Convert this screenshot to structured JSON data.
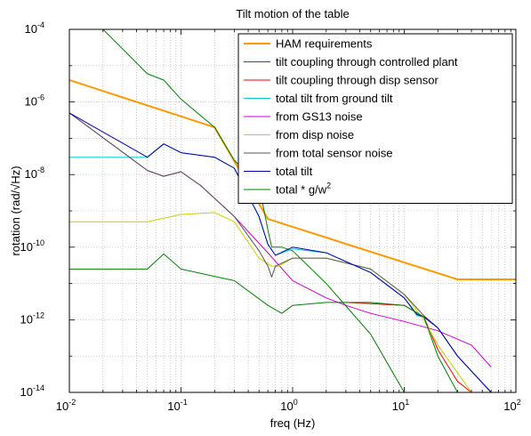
{
  "chart_data": {
    "type": "line",
    "title": "Tilt motion of the table",
    "xlabel": "freq (Hz)",
    "ylabel": "rotation (rad/√Hz)",
    "xscale": "log",
    "yscale": "log",
    "xlim": [
      0.01,
      100
    ],
    "ylim": [
      1e-14,
      0.0001
    ],
    "grid": true,
    "legend_position": "top-right",
    "x_ticks": [
      {
        "value": 0.01,
        "base": "10",
        "exp": "-2"
      },
      {
        "value": 0.1,
        "base": "10",
        "exp": "-1"
      },
      {
        "value": 1,
        "base": "10",
        "exp": "0"
      },
      {
        "value": 10,
        "base": "10",
        "exp": "1"
      },
      {
        "value": 100,
        "base": "10",
        "exp": "2"
      }
    ],
    "y_ticks": [
      {
        "value": 1e-14,
        "base": "10",
        "exp": "-14"
      },
      {
        "value": 1e-12,
        "base": "10",
        "exp": "-12"
      },
      {
        "value": 1e-10,
        "base": "10",
        "exp": "-10"
      },
      {
        "value": 1e-08,
        "base": "10",
        "exp": "-8"
      },
      {
        "value": 1e-06,
        "base": "10",
        "exp": "-6"
      },
      {
        "value": 0.0001,
        "base": "10",
        "exp": "-4"
      }
    ],
    "series": [
      {
        "name": "HAM requirements",
        "color": "#ff9900",
        "width": 2,
        "x": [
          0.01,
          0.2,
          0.6,
          30,
          100
        ],
        "y": [
          4e-06,
          2e-07,
          6e-10,
          1.3e-11,
          1.3e-11
        ]
      },
      {
        "name": "tilt coupling through controlled plant",
        "color": "#008000",
        "width": 1,
        "x": [
          0.02,
          0.05,
          0.07,
          0.1,
          0.2,
          0.3,
          0.5,
          0.6,
          0.65,
          0.8,
          1,
          2,
          5,
          10
        ],
        "y": [
          0.0001,
          6e-06,
          4e-06,
          1.2e-06,
          2e-07,
          2.5e-08,
          5e-09,
          3e-10,
          1e-10,
          1e-10,
          8e-11,
          1e-11,
          4e-13,
          1e-14
        ]
      },
      {
        "name": "tilt coupling through disp sensor",
        "color": "#ff0000",
        "width": 1,
        "x": [
          3,
          10,
          15,
          20,
          30,
          40
        ],
        "y": [
          3e-12,
          2.5e-12,
          1.2e-12,
          1.5e-13,
          2e-14,
          1e-14
        ]
      },
      {
        "name": "total tilt from ground tilt",
        "color": "#00cccc",
        "width": 1,
        "x": [
          0.01,
          0.05,
          0.07,
          0.1,
          0.2,
          0.3,
          0.5,
          0.6,
          0.7,
          1,
          2,
          5,
          10,
          13,
          15,
          20,
          30,
          60
        ],
        "y": [
          3e-08,
          3e-08,
          7e-08,
          4e-08,
          3e-08,
          1.5e-08,
          7e-10,
          1.2e-10,
          6e-11,
          9e-11,
          7e-11,
          2e-11,
          4e-12,
          1.3e-12,
          1.2e-12,
          6e-13,
          1e-13,
          1e-14
        ]
      },
      {
        "name": "from GS13 noise",
        "color": "#cc00cc",
        "width": 1,
        "x": [
          0.01,
          0.05,
          0.07,
          0.1,
          0.15,
          0.3,
          0.6,
          1,
          2,
          3,
          5,
          10,
          20,
          40,
          60
        ],
        "y": [
          5e-07,
          1.3e-08,
          9e-09,
          1.2e-08,
          5e-09,
          7e-10,
          7e-11,
          1.2e-11,
          4e-12,
          2.5e-12,
          1.5e-12,
          9e-13,
          5e-13,
          2e-13,
          5e-14
        ]
      },
      {
        "name": "from disp noise",
        "color": "#cccc00",
        "width": 1,
        "x": [
          0.01,
          0.05,
          0.1,
          0.2,
          0.3,
          0.5,
          0.65,
          0.75,
          1,
          2,
          5,
          10,
          15,
          20,
          40
        ],
        "y": [
          5e-10,
          5e-10,
          8e-10,
          9e-10,
          5e-10,
          5e-11,
          3e-11,
          3e-11,
          5e-11,
          5e-11,
          2.5e-11,
          5e-12,
          1e-12,
          2e-13,
          1e-14
        ]
      },
      {
        "name": "from total sensor noise",
        "color": "#555555",
        "width": 1,
        "x": [
          0.01,
          0.05,
          0.07,
          0.1,
          0.15,
          0.3,
          0.5,
          0.6,
          0.65,
          0.7,
          1,
          2,
          5,
          10,
          15,
          20,
          30,
          60
        ],
        "y": [
          5e-07,
          1.3e-08,
          9e-09,
          1.2e-08,
          5e-09,
          7e-10,
          8e-11,
          3e-11,
          1.5e-11,
          3e-11,
          5e-11,
          5e-11,
          2.5e-11,
          5e-12,
          1.3e-12,
          6e-13,
          1e-13,
          1e-14
        ]
      },
      {
        "name": "total tilt",
        "color": "#0000aa",
        "width": 1,
        "x": [
          0.01,
          0.05,
          0.07,
          0.1,
          0.2,
          0.3,
          0.5,
          0.6,
          0.7,
          1,
          2,
          5,
          10,
          13,
          15,
          20,
          30,
          60
        ],
        "y": [
          5e-07,
          3e-08,
          7e-08,
          4e-08,
          3e-08,
          1.5e-08,
          7e-10,
          1.2e-10,
          6e-11,
          1e-10,
          7e-11,
          2e-11,
          4e-12,
          1.4e-12,
          1.2e-12,
          6e-13,
          1e-13,
          1e-14
        ]
      },
      {
        "name": "total * g/w",
        "name_sup": "2",
        "color": "#008000",
        "width": 1,
        "x": [
          0.01,
          0.05,
          0.07,
          0.1,
          0.3,
          0.6,
          0.8,
          1,
          2,
          5,
          10,
          15,
          20,
          30,
          50,
          70
        ],
        "y": [
          2.5e-11,
          2.5e-11,
          6.5e-11,
          2.5e-11,
          1.2e-11,
          2.5e-12,
          1.5e-12,
          2.5e-12,
          3e-12,
          3e-12,
          2.5e-12,
          1.2e-12,
          1e-13,
          1e-14,
          1e-14,
          1e-14
        ]
      }
    ]
  }
}
